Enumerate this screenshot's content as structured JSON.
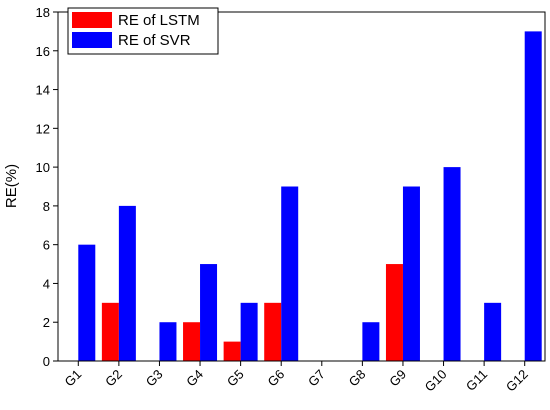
{
  "chart_data": {
    "type": "bar",
    "y_label": "RE(%)",
    "categories": [
      "G1",
      "G2",
      "G3",
      "G4",
      "G5",
      "G6",
      "G7",
      "G8",
      "G9",
      "G10",
      "G11",
      "G12"
    ],
    "series": [
      {
        "name": "RE of LSTM",
        "color": "#ff0000",
        "values": [
          0,
          3,
          0,
          2,
          1,
          3,
          0,
          0,
          5,
          0,
          0,
          0
        ]
      },
      {
        "name": "RE of SVR",
        "color": "#0000ff",
        "values": [
          6,
          8,
          2,
          5,
          3,
          9,
          0,
          2,
          9,
          10,
          3,
          17
        ]
      }
    ],
    "ylim": [
      0,
      18
    ],
    "yticks": [
      0,
      2,
      4,
      6,
      8,
      10,
      12,
      14,
      16,
      18
    ],
    "legend": "upper-left"
  }
}
